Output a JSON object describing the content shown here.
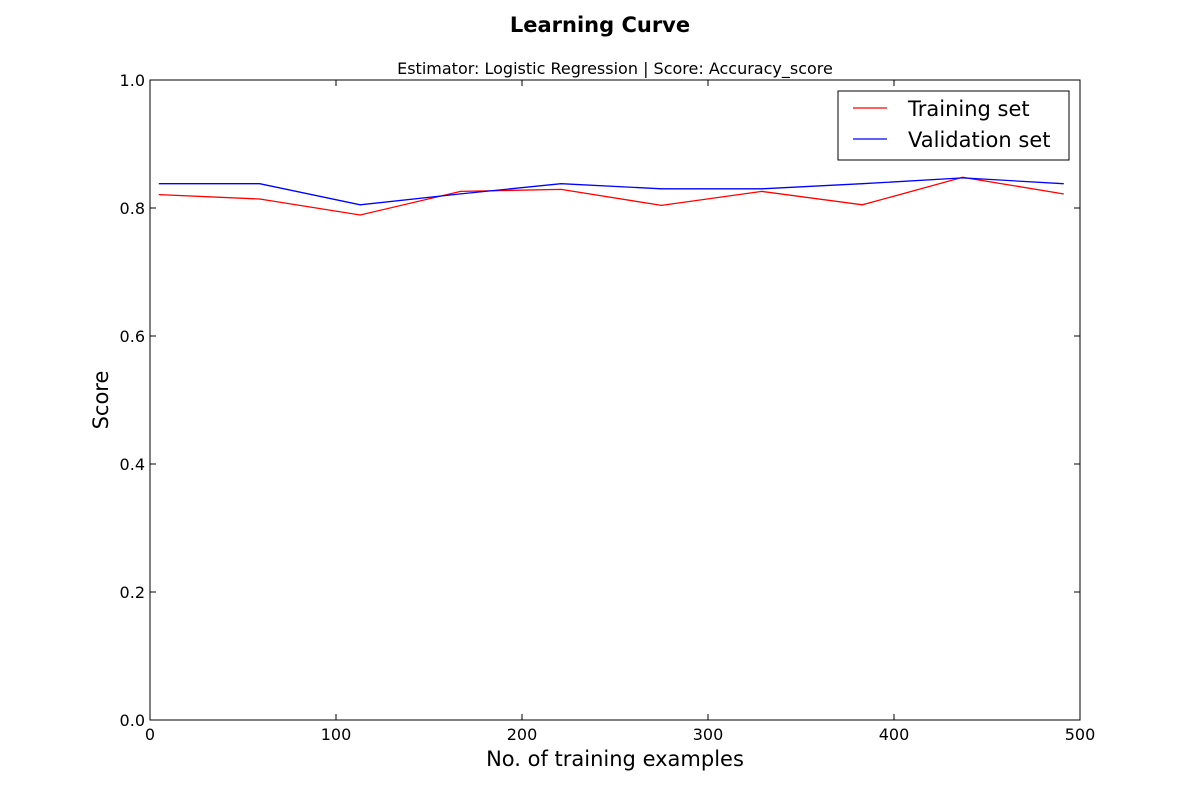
{
  "chart_data": {
    "type": "line",
    "title": "Learning Curve",
    "subtitle": "Estimator: Logistic Regression | Score: Accuracy_score",
    "xlabel": "No. of training examples",
    "ylabel": "Score",
    "xlim": [
      0,
      500
    ],
    "ylim": [
      0.0,
      1.0
    ],
    "x_ticks": [
      "0",
      "100",
      "200",
      "300",
      "400",
      "500"
    ],
    "y_ticks": [
      "0.0",
      "0.2",
      "0.4",
      "0.6",
      "0.8",
      "1.0"
    ],
    "grid": false,
    "legend_position": "top-right",
    "x": [
      5,
      59,
      113,
      167,
      221,
      275,
      329,
      383,
      437,
      491
    ],
    "series": [
      {
        "name": "Training set",
        "color": "#ff0000",
        "values": [
          0.821,
          0.814,
          0.789,
          0.826,
          0.829,
          0.804,
          0.826,
          0.805,
          0.848,
          0.822
        ]
      },
      {
        "name": "Validation set",
        "color": "#0000ff",
        "values": [
          0.838,
          0.838,
          0.805,
          0.822,
          0.838,
          0.83,
          0.83,
          0.838,
          0.847,
          0.838
        ]
      }
    ]
  }
}
